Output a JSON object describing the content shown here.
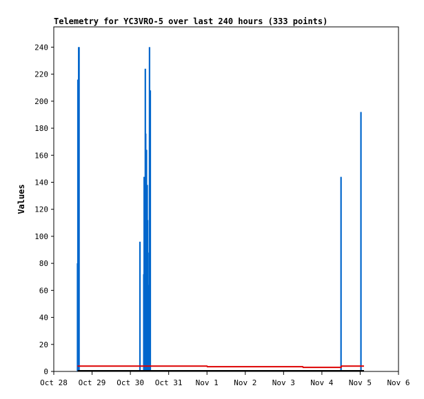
{
  "chart_data": {
    "type": "line",
    "title": "Telemetry for YC3VRO-5 over last 240 hours (333 points)",
    "ylabel": "Values",
    "xlabel": "",
    "ylim": [
      0,
      255
    ],
    "y_ticks": [
      0,
      20,
      40,
      60,
      80,
      100,
      120,
      140,
      160,
      180,
      200,
      220,
      240
    ],
    "x_ticks": [
      {
        "label": "Oct 28",
        "t": 0.0
      },
      {
        "label": "Oct 29",
        "t": 1.0
      },
      {
        "label": "Oct 30",
        "t": 2.0
      },
      {
        "label": "Oct 31",
        "t": 3.0
      },
      {
        "label": "Nov 1",
        "t": 4.0
      },
      {
        "label": "Nov 2",
        "t": 5.0
      },
      {
        "label": "Nov 3",
        "t": 6.0
      },
      {
        "label": "Nov 4",
        "t": 7.0
      },
      {
        "label": "Nov 5",
        "t": 8.0
      },
      {
        "label": "Nov 6",
        "t": 9.0
      }
    ],
    "xlim": [
      0.0,
      9.0
    ],
    "grid": false,
    "series": [
      {
        "color": "#0066cc",
        "style": "spikes",
        "points": [
          [
            0.62,
            80
          ],
          [
            0.63,
            216
          ],
          [
            0.65,
            240
          ],
          [
            0.66,
            240
          ],
          [
            2.25,
            96
          ],
          [
            2.35,
            72
          ],
          [
            2.36,
            144
          ],
          [
            2.37,
            128
          ],
          [
            2.39,
            224
          ],
          [
            2.4,
            176
          ],
          [
            2.42,
            164
          ],
          [
            2.44,
            138
          ],
          [
            2.45,
            112
          ],
          [
            2.46,
            88
          ],
          [
            2.48,
            64
          ],
          [
            2.5,
            240
          ],
          [
            2.52,
            208
          ],
          [
            7.5,
            144
          ],
          [
            8.02,
            192
          ]
        ]
      },
      {
        "color": "#dd0000",
        "style": "line",
        "points": [
          [
            0.62,
            4
          ],
          [
            4.0,
            4
          ],
          [
            4.01,
            3.5
          ],
          [
            6.5,
            3.5
          ],
          [
            6.51,
            3
          ],
          [
            7.5,
            3
          ],
          [
            7.51,
            4
          ],
          [
            8.1,
            4
          ]
        ]
      },
      {
        "color": "#000000",
        "style": "line",
        "points": [
          [
            0.62,
            0.5
          ],
          [
            8.1,
            0.5
          ]
        ]
      }
    ]
  }
}
